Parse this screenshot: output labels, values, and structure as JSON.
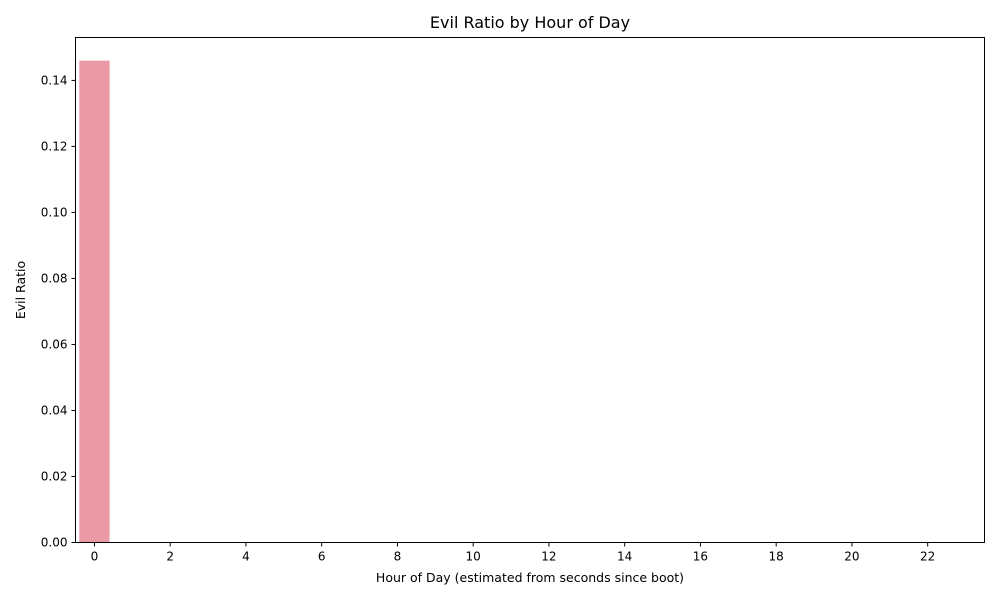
{
  "chart_data": {
    "type": "bar",
    "title": "Evil Ratio by Hour of Day",
    "xlabel": "Hour of Day (estimated from seconds since boot)",
    "ylabel": "Evil Ratio",
    "categories": [
      0,
      1,
      2,
      3,
      4,
      5,
      6,
      7,
      8,
      9,
      10,
      11,
      12,
      13,
      14,
      15,
      16,
      17,
      18,
      19,
      20,
      21,
      22,
      23
    ],
    "values": [
      0.146,
      0,
      0,
      0,
      0,
      0,
      0,
      0,
      0,
      0,
      0,
      0,
      0,
      0,
      0,
      0,
      0,
      0,
      0,
      0,
      0,
      0,
      0,
      0
    ],
    "xticks": [
      "0",
      "2",
      "4",
      "6",
      "8",
      "10",
      "12",
      "14",
      "16",
      "18",
      "20",
      "22"
    ],
    "yticks": [
      "0.00",
      "0.02",
      "0.04",
      "0.06",
      "0.08",
      "0.10",
      "0.12",
      "0.14"
    ],
    "ylim": [
      0,
      0.153
    ],
    "grid": false,
    "bar_color": "#ea9aa6"
  }
}
